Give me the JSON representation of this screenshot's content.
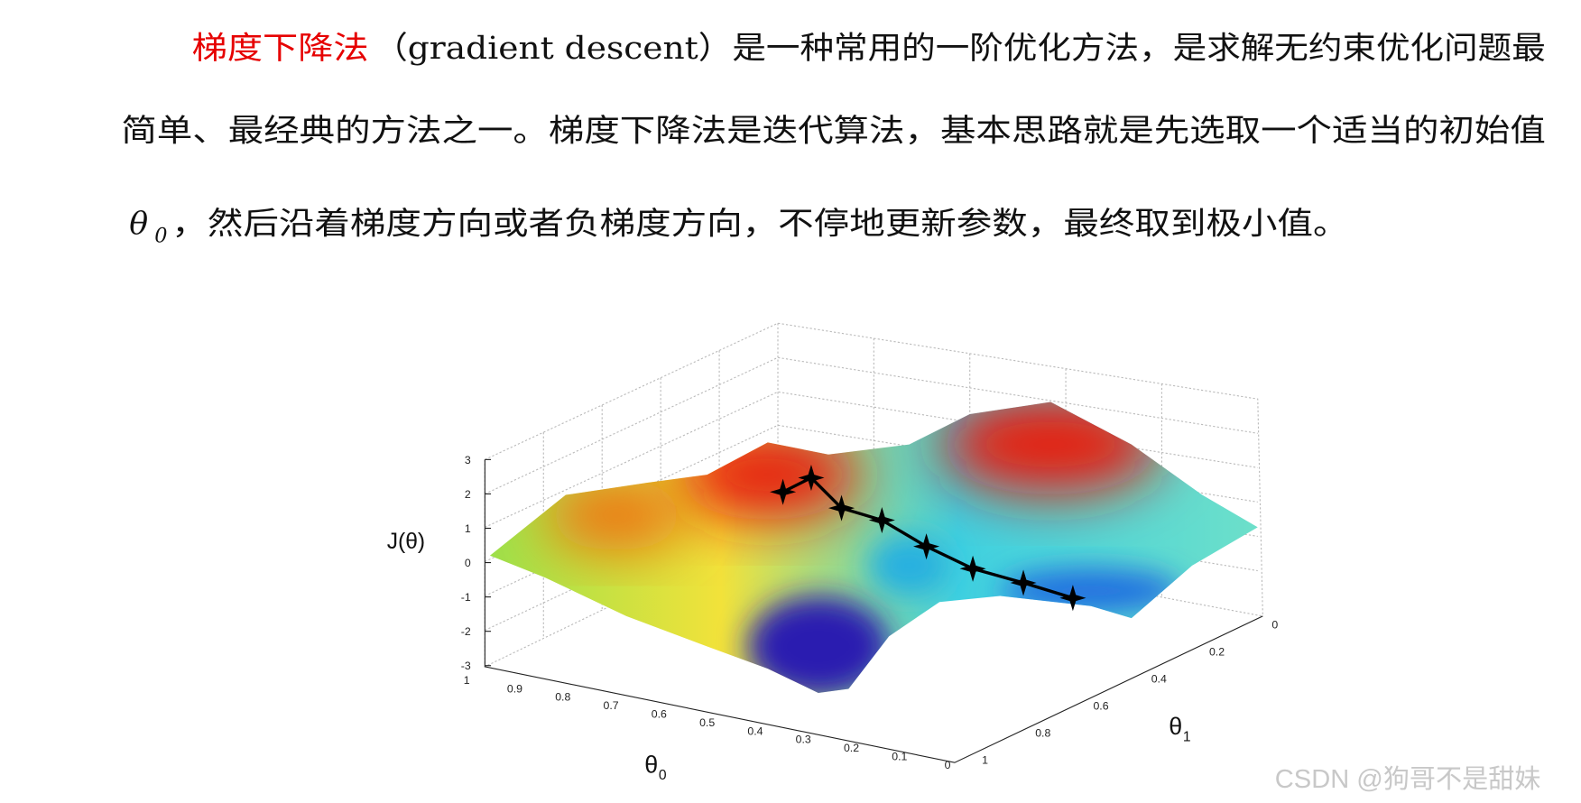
{
  "paragraph": {
    "line_1_term": "梯度下降法",
    "line_1_rest": "（gradient descent）是一种常用的一阶优化方法，是求解无约束优化问题最",
    "line_2": "简单、最经典的方法之一。梯度下降法是迭代算法，基本思路就是先选取一个适当的初始值",
    "line_3_symbol": "θ",
    "line_3_subscript": "0",
    "line_3_rest": "，然后沿着梯度方向或者负梯度方向，不停地更新参数，最终取到极小值。"
  },
  "figure": {
    "z_label": "J(θ)",
    "x_label": "θ",
    "x_label_subscript": "0",
    "y_label": "θ",
    "y_label_subscript": "1",
    "z_ticks": [
      "3",
      "2",
      "1",
      "0",
      "-1",
      "-2",
      "-3"
    ],
    "x_ticks": [
      "1",
      "0.9",
      "0.8",
      "0.7",
      "0.6",
      "0.5",
      "0.4",
      "0.3",
      "0.2",
      "0.1",
      "0"
    ],
    "y_ticks": [
      "0",
      "0.2",
      "0.4",
      "0.6",
      "0.8",
      "1"
    ]
  },
  "watermark": "CSDN @狗哥不是甜妹"
}
